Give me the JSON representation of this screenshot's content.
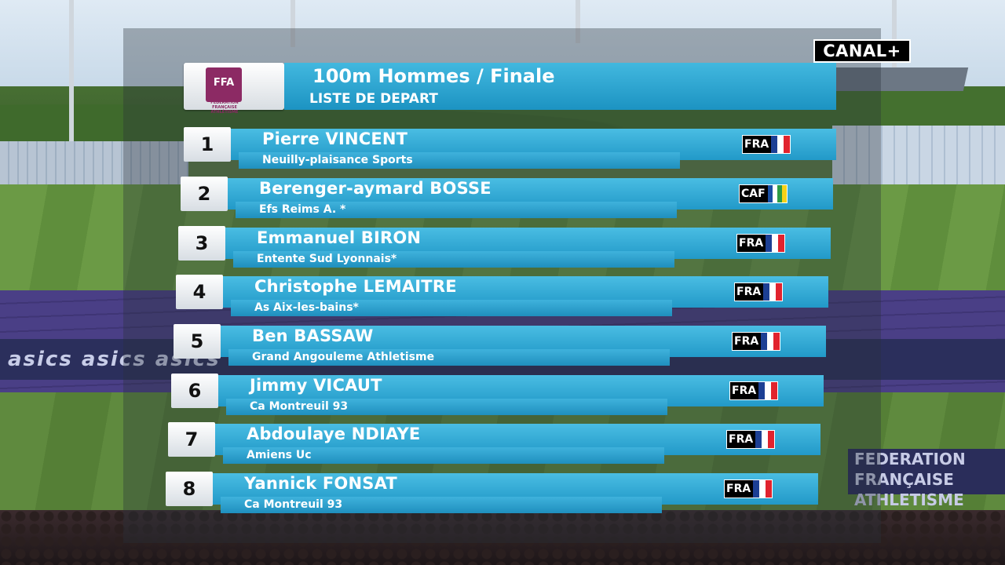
{
  "broadcaster": {
    "logo_text": "CANAL+"
  },
  "background": {
    "adboard_text": "asics  asics  asics",
    "federation_text": "FEDERATION FRANÇAISE ATHLETISME"
  },
  "federation_logo": {
    "mark": "FFA",
    "subtext": "FÉDÉRATION FRANÇAISE ATHLÉTISME"
  },
  "header": {
    "title": "100m Hommes / Finale",
    "subtitle": "LISTE DE DEPART"
  },
  "colors": {
    "bar_primary": "#2a9fcd",
    "bar_light": "#4abde3",
    "ffa_purple": "#8c2a64"
  },
  "athletes": [
    {
      "lane": "1",
      "name": "Pierre VINCENT",
      "club": "Neuilly-plaisance Sports",
      "country": "FRA",
      "flag_colors": [
        "#1c3f94",
        "#ffffff",
        "#e1232e"
      ]
    },
    {
      "lane": "2",
      "name": "Berenger-aymard BOSSE",
      "club": "Efs Reims A. *",
      "country": "CAF",
      "flag_colors": [
        "#1a4fa3",
        "#ffffff",
        "#2e9b45",
        "#f7d117"
      ]
    },
    {
      "lane": "3",
      "name": "Emmanuel BIRON",
      "club": "Entente Sud Lyonnais*",
      "country": "FRA",
      "flag_colors": [
        "#1c3f94",
        "#ffffff",
        "#e1232e"
      ]
    },
    {
      "lane": "4",
      "name": "Christophe LEMAITRE",
      "club": "As Aix-les-bains*",
      "country": "FRA",
      "flag_colors": [
        "#1c3f94",
        "#ffffff",
        "#e1232e"
      ]
    },
    {
      "lane": "5",
      "name": "Ben BASSAW",
      "club": "Grand Angouleme Athletisme",
      "country": "FRA",
      "flag_colors": [
        "#1c3f94",
        "#ffffff",
        "#e1232e"
      ]
    },
    {
      "lane": "6",
      "name": "Jimmy VICAUT",
      "club": "Ca Montreuil 93",
      "country": "FRA",
      "flag_colors": [
        "#1c3f94",
        "#ffffff",
        "#e1232e"
      ]
    },
    {
      "lane": "7",
      "name": "Abdoulaye NDIAYE",
      "club": "Amiens Uc",
      "country": "FRA",
      "flag_colors": [
        "#1c3f94",
        "#ffffff",
        "#e1232e"
      ]
    },
    {
      "lane": "8",
      "name": "Yannick FONSAT",
      "club": "Ca Montreuil 93",
      "country": "FRA",
      "flag_colors": [
        "#1c3f94",
        "#ffffff",
        "#e1232e"
      ]
    }
  ]
}
